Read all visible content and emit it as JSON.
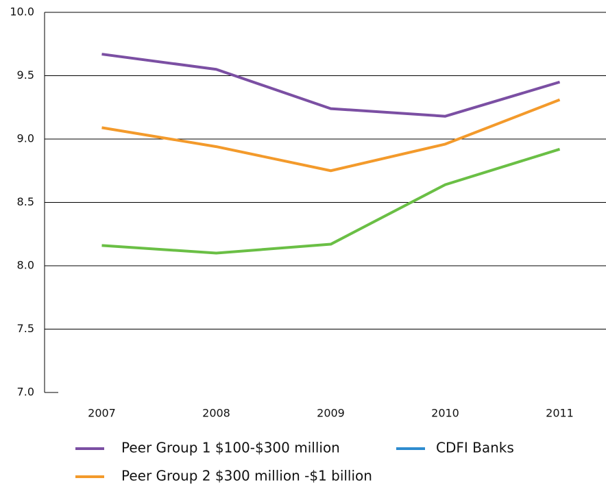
{
  "chart_data": {
    "type": "line",
    "categories": [
      "2007",
      "2008",
      "2009",
      "2010",
      "2011"
    ],
    "series": [
      {
        "name": "Peer Group 1 $100-$300 million",
        "color": "#7b4fa3",
        "values": [
          9.67,
          9.55,
          9.24,
          9.18,
          9.45
        ]
      },
      {
        "name": "Peer Group 2 $300 million -$1 billion",
        "color": "#f39a2b",
        "values": [
          9.09,
          8.94,
          8.75,
          8.96,
          9.31
        ]
      },
      {
        "name": "CDFI Banks",
        "color": "#6abf45",
        "legend_color": "#2e8ccf",
        "values": [
          8.16,
          8.1,
          8.17,
          8.64,
          8.92
        ]
      }
    ],
    "ylim": [
      7,
      10
    ],
    "yticks": [
      {
        "value": 7,
        "label": "7.0"
      },
      7.5,
      {
        "value": 8,
        "label": "8.0"
      },
      8.5,
      {
        "value": 9,
        "label": "9.0"
      },
      9.5,
      {
        "value": 10,
        "label": "10.0"
      }
    ],
    "grid": true
  }
}
